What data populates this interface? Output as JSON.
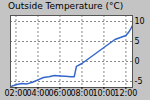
{
  "chart_data": {
    "type": "line",
    "title": "Outside Temperature (°C)",
    "x": [
      1.5,
      2.0,
      2.5,
      3.0,
      3.5,
      4.0,
      4.5,
      5.0,
      5.5,
      6.0,
      6.5,
      7.0,
      7.3,
      7.5,
      8.0,
      8.5,
      9.0,
      9.5,
      10.0,
      10.5,
      11.0,
      11.5,
      12.0,
      12.3,
      12.6
    ],
    "values": [
      -6.3,
      -5.8,
      -5.5,
      -5.6,
      -5.2,
      -4.6,
      -4.0,
      -3.8,
      -3.5,
      -3.6,
      -3.7,
      -3.8,
      -3.8,
      -1.2,
      -0.5,
      0.5,
      1.5,
      2.5,
      3.5,
      4.5,
      5.5,
      6.0,
      6.5,
      7.5,
      9.0
    ],
    "color": "#3366cc",
    "xlim": [
      1.5,
      12.6
    ],
    "ylim": [
      -6.5,
      11.5
    ],
    "xticks": [
      {
        "value": 2,
        "label": "02:00"
      },
      {
        "value": 4,
        "label": "04:00"
      },
      {
        "value": 6,
        "label": "06:00"
      },
      {
        "value": 8,
        "label": "08:00"
      },
      {
        "value": 10,
        "label": "10:00"
      },
      {
        "value": 12,
        "label": "12:00"
      }
    ],
    "yticks": [
      -5,
      0,
      5,
      10
    ],
    "grid": true
  }
}
